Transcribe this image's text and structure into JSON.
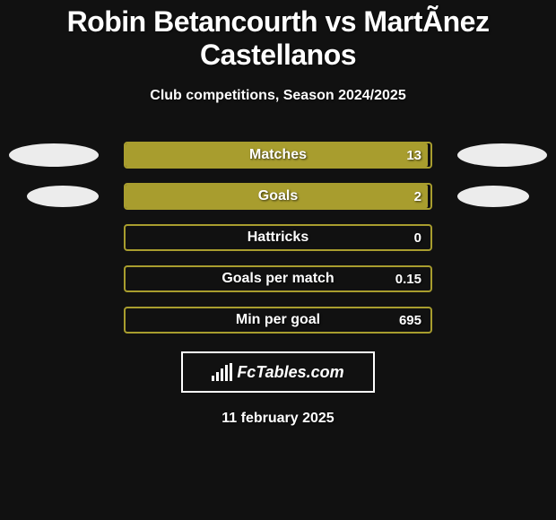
{
  "title": "Robin Betancourth vs MartÃ­nez Castellanos",
  "subtitle": "Club competitions, Season 2024/2025",
  "colors": {
    "bar_border": "#a89d2e",
    "bar_fill": "#a89d2e",
    "oval": "#ececec",
    "background": "#111111"
  },
  "rows": [
    {
      "label": "Matches",
      "value": "13",
      "fill_pct": 99,
      "left_oval": true,
      "right_oval": true,
      "narrow_oval": false
    },
    {
      "label": "Goals",
      "value": "2",
      "fill_pct": 99,
      "left_oval": true,
      "right_oval": true,
      "narrow_oval": true
    },
    {
      "label": "Hattricks",
      "value": "0",
      "fill_pct": 0,
      "left_oval": false,
      "right_oval": false
    },
    {
      "label": "Goals per match",
      "value": "0.15",
      "fill_pct": 0,
      "left_oval": false,
      "right_oval": false
    },
    {
      "label": "Min per goal",
      "value": "695",
      "fill_pct": 0,
      "left_oval": false,
      "right_oval": false
    }
  ],
  "logo_text": "FcTables.com",
  "date": "11 february 2025"
}
